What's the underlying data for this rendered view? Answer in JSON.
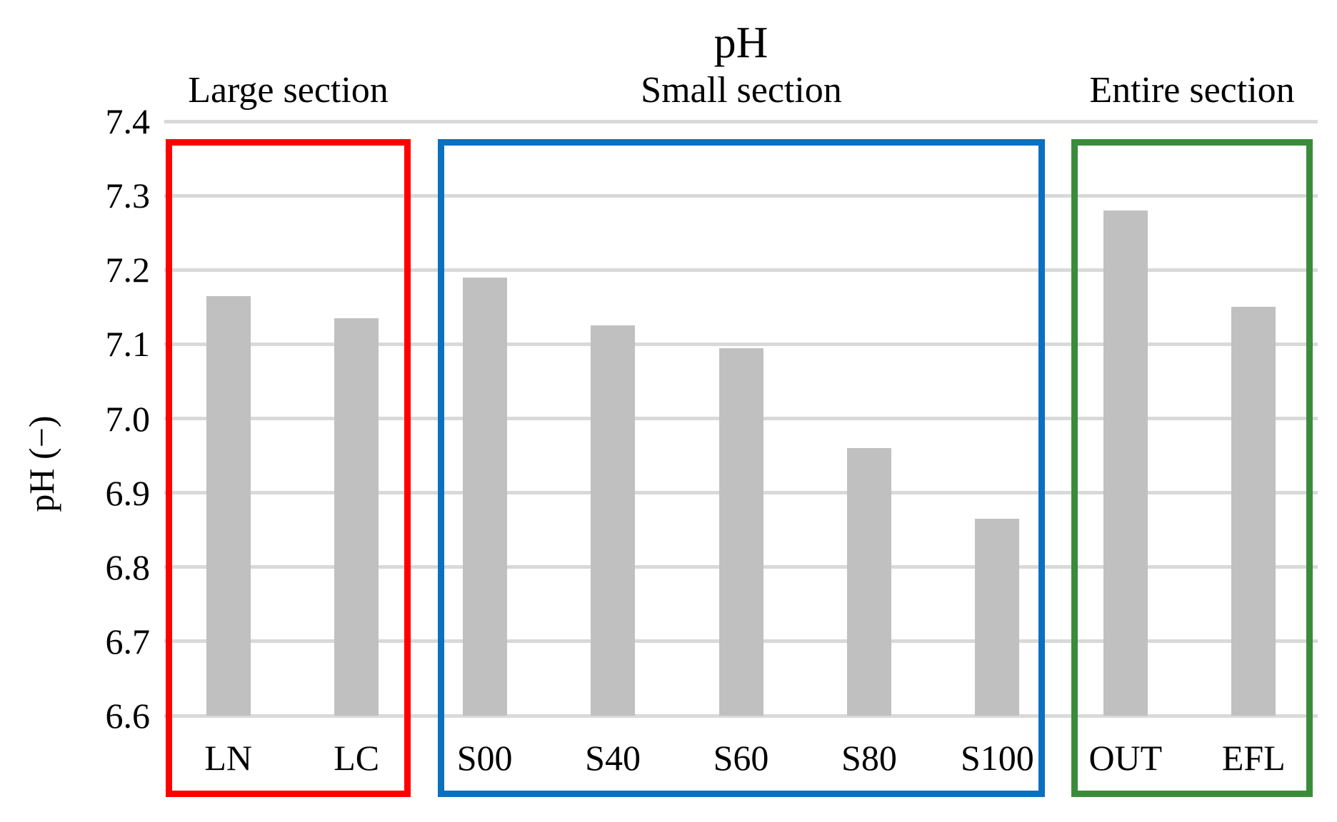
{
  "chart_data": {
    "type": "bar",
    "title": "pH",
    "ylabel": "pH (−)",
    "ylim": [
      6.6,
      7.4
    ],
    "ytick_step": 0.1,
    "yticks": [
      "7.4",
      "7.3",
      "7.2",
      "7.1",
      "7.0",
      "6.9",
      "6.8",
      "6.7",
      "6.6"
    ],
    "categories": [
      "LN",
      "LC",
      "S00",
      "S40",
      "S60",
      "S80",
      "S100",
      "OUT",
      "EFL"
    ],
    "values": [
      7.165,
      7.135,
      7.19,
      7.125,
      7.095,
      6.96,
      6.865,
      7.28,
      7.15
    ],
    "grid": true,
    "legend": "none",
    "bar_color": "#c0c0c0",
    "gridline_color": "#d9d9d9",
    "groups": [
      {
        "label": "Large section",
        "categories": [
          "LN",
          "LC"
        ],
        "box_color": "#fe0000"
      },
      {
        "label": "Small section",
        "categories": [
          "S00",
          "S40",
          "S60",
          "S80",
          "S100"
        ],
        "box_color": "#0a70c0"
      },
      {
        "label": "Entire section",
        "categories": [
          "OUT",
          "EFL"
        ],
        "box_color": "#3a8c3a"
      }
    ]
  }
}
